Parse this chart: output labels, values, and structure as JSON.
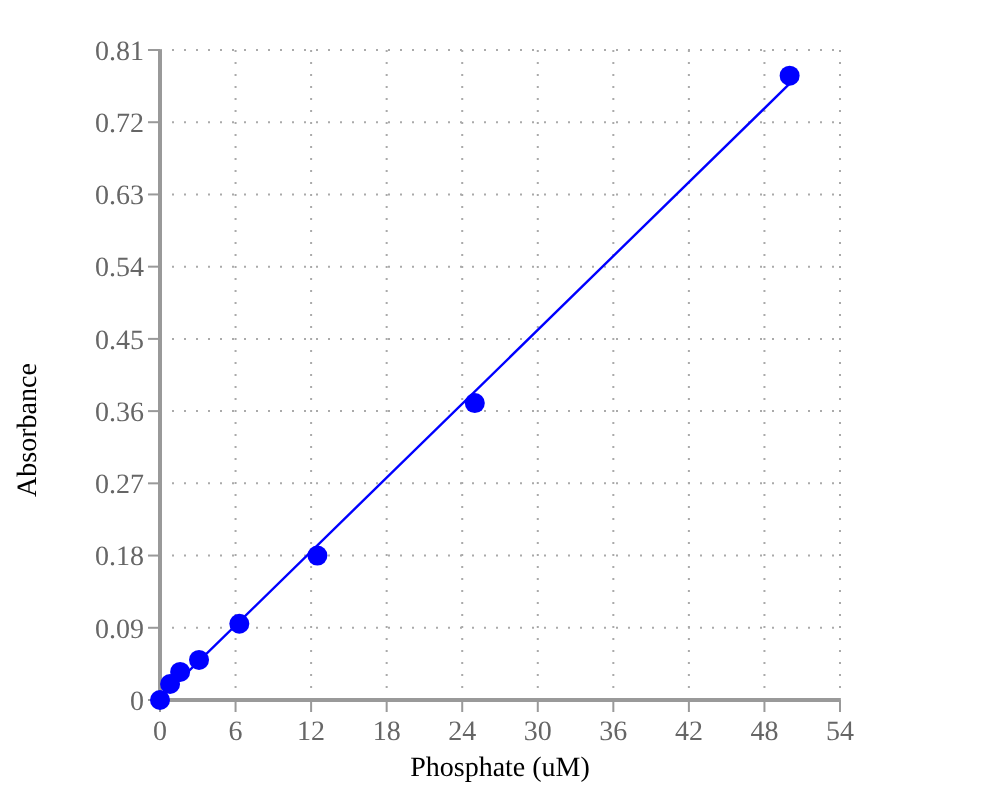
{
  "chart_data": {
    "type": "scatter",
    "xlabel": "Phosphate (uM)",
    "ylabel": "Absorbance",
    "xlim": [
      0,
      54
    ],
    "ylim": [
      0,
      0.81
    ],
    "xticks": [
      0,
      6,
      12,
      18,
      24,
      30,
      36,
      42,
      48,
      54
    ],
    "yticks": [
      0,
      0.09,
      0.18,
      0.27,
      0.36,
      0.45,
      0.54,
      0.63,
      0.72,
      0.81
    ],
    "grid": true,
    "marker": "circle",
    "series": [
      {
        "color": "#0000ff",
        "x": [
          0,
          0.8,
          1.6,
          3.1,
          6.3,
          12.5,
          25,
          50
        ],
        "values": [
          0,
          0.02,
          0.035,
          0.05,
          0.095,
          0.18,
          0.37,
          0.778
        ]
      },
      {
        "type": "line",
        "color": "#0000ff",
        "marker": "none",
        "x": [
          0,
          50
        ],
        "values": [
          0.001,
          0.768
        ]
      }
    ]
  }
}
